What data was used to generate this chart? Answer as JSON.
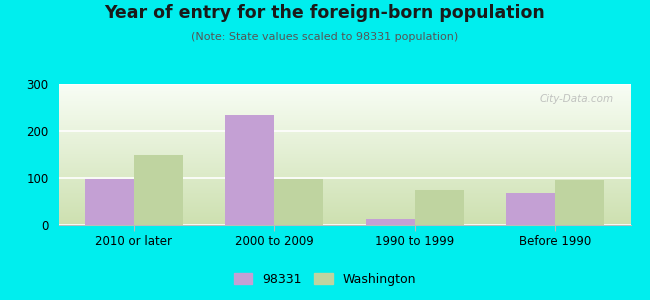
{
  "title": "Year of entry for the foreign-born population",
  "subtitle": "(Note: State values scaled to 98331 population)",
  "categories": [
    "2010 or later",
    "2000 to 2009",
    "1990 to 1999",
    "Before 1990"
  ],
  "values_98331": [
    97,
    235,
    13,
    68
  ],
  "values_washington": [
    148,
    97,
    75,
    95
  ],
  "bar_color_98331": "#c4a0d4",
  "bar_color_washington": "#bfd4a0",
  "background_color": "#00eeee",
  "plot_bg_top": "#f8fdf5",
  "plot_bg_bottom": "#cde0b0",
  "ylim": [
    0,
    300
  ],
  "yticks": [
    0,
    100,
    200,
    300
  ],
  "bar_width": 0.35,
  "legend_label_98331": "98331",
  "legend_label_washington": "Washington",
  "watermark": "City-Data.com"
}
